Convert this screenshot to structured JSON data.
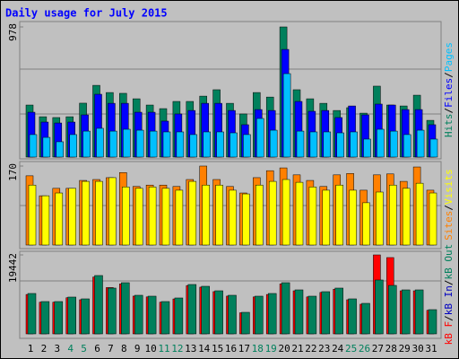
{
  "chart_data": {
    "type": "bar",
    "title": "Daily usage for July 2015",
    "separator": "/",
    "categories": [
      "1",
      "2",
      "3",
      "4",
      "5",
      "6",
      "7",
      "8",
      "9",
      "10",
      "11",
      "12",
      "13",
      "14",
      "15",
      "16",
      "17",
      "18",
      "19",
      "20",
      "21",
      "22",
      "23",
      "24",
      "25",
      "26",
      "27",
      "28",
      "29",
      "30",
      "31"
    ],
    "category_colors": [
      "#000000",
      "#000000",
      "#000000",
      "#00805c",
      "#00805c",
      "#000000",
      "#000000",
      "#000000",
      "#000000",
      "#000000",
      "#00805c",
      "#00805c",
      "#000000",
      "#000000",
      "#000000",
      "#000000",
      "#000000",
      "#00805c",
      "#00805c",
      "#000000",
      "#000000",
      "#000000",
      "#000000",
      "#000000",
      "#00805c",
      "#00805c",
      "#000000",
      "#000000",
      "#000000",
      "#000000",
      "#000000"
    ],
    "panels": [
      {
        "ylim": [
          0,
          978
        ],
        "yticks": [
          978
        ],
        "series": [
          {
            "name": "Hits",
            "color": "#00805c",
            "values": [
              391,
              303,
              297,
              303,
              405,
              539,
              485,
              479,
              438,
              391,
              364,
              418,
              418,
              458,
              506,
              404,
              324,
              485,
              451,
              978,
              506,
              438,
              404,
              350,
              371,
              330,
              533,
              391,
              384,
              465,
              276
            ]
          },
          {
            "name": "Files",
            "color": "#0000ff",
            "values": [
              337,
              263,
              256,
              263,
              317,
              472,
              404,
              404,
              337,
              337,
              270,
              324,
              350,
              404,
              404,
              350,
              243,
              357,
              350,
              809,
              418,
              344,
              350,
              297,
              384,
              317,
              398,
              391,
              357,
              357,
              243
            ]
          },
          {
            "name": "Pages",
            "color": "#00c0ff",
            "values": [
              169,
              148,
              115,
              169,
              195,
              216,
              195,
              209,
              202,
              195,
              189,
              189,
              169,
              189,
              189,
              182,
              169,
              290,
              202,
              627,
              195,
              189,
              189,
              182,
              189,
              135,
              209,
              195,
              169,
              202,
              135
            ]
          }
        ]
      },
      {
        "ylim": [
          0,
          170
        ],
        "yticks": [
          170
        ],
        "series": [
          {
            "name": "Sites",
            "color": "#ff8000",
            "values": [
              149,
              106,
              122,
              122,
              139,
              141,
              145,
              156,
              126,
              129,
              129,
              126,
              141,
              170,
              141,
              126,
              112,
              145,
              160,
              166,
              151,
              139,
              126,
              151,
              154,
              118,
              151,
              153,
              137,
              168,
              118
            ]
          },
          {
            "name": "Visits",
            "color": "#ffff00",
            "values": [
              129,
              106,
              112,
              122,
              137,
              137,
              145,
              125,
              122,
              125,
              122,
              118,
              137,
              129,
              129,
              118,
              110,
              129,
              137,
              141,
              135,
              125,
              118,
              129,
              118,
              91,
              114,
              129,
              122,
              133,
              112
            ]
          }
        ]
      },
      {
        "ylim": [
          0,
          19442
        ],
        "yticks": [
          19442
        ],
        "series": [
          {
            "name": "kB F",
            "color": "#ff0000",
            "values": [
              9700,
              7800,
              7800,
              8900,
              8400,
              14000,
              11400,
              12300,
              9300,
              9100,
              7800,
              8600,
              11900,
              11500,
              10400,
              9300,
              5200,
              9100,
              9700,
              12300,
              10600,
              9100,
              10200,
              11000,
              8400,
              7300,
              19442,
              18785,
              10600,
              10600,
              5800
            ]
          },
          {
            "name": "kB In",
            "color": "#0000c0",
            "values": [
              null,
              null,
              null,
              null,
              null,
              null,
              null,
              null,
              null,
              null,
              null,
              null,
              null,
              null,
              null,
              null,
              null,
              null,
              null,
              null,
              null,
              null,
              null,
              null,
              null,
              null,
              null,
              null,
              null,
              null,
              null
            ]
          },
          {
            "name": "kB Out",
            "color": "#00805c",
            "values": [
              9945,
              7956,
              7956,
              9061,
              8619,
              14365,
              11271,
              12597,
              9503,
              9282,
              7956,
              8840,
              12155,
              11713,
              10608,
              9503,
              5304,
              9282,
              9945,
              12597,
              10829,
              9282,
              10387,
              11271,
              8619,
              7514,
              13260,
              11934,
              10829,
              10829,
              5967
            ]
          }
        ]
      }
    ]
  }
}
